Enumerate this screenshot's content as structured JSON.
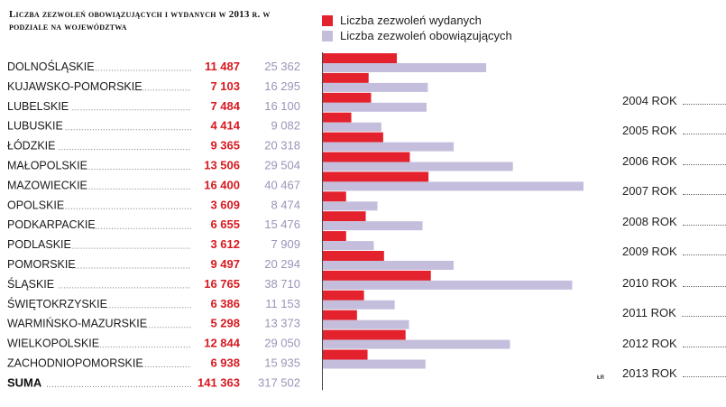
{
  "title": "Liczba zezwoleń obowiązujących i wydanych w 2013 r. w podziale na województwa",
  "legend": {
    "issued_label": "Liczba zezwoleń wydanych",
    "valid_label": "Liczba zezwoleń obowiązujących"
  },
  "colors": {
    "issued": "#e3222d",
    "valid": "#c4bedc",
    "issued_text": "#d71920"
  },
  "chart_data": {
    "type": "bar",
    "orientation": "horizontal",
    "title": "Liczba zezwoleń obowiązujących i wydanych w 2013 r. w podziale na województwa",
    "categories": [
      "DOLNOŚLĄSKIE",
      "KUJAWSKO-POMORSKIE",
      "LUBELSKIE",
      "LUBUSKIE",
      "ŁÓDZKIE",
      "MAŁOPOLSKIE",
      "MAZOWIECKIE",
      "OPOLSKIE",
      "PODKARPACKIE",
      "PODLASKIE",
      "POMORSKIE",
      "ŚLĄSKIE",
      "ŚWIĘTOKRZYSKIE",
      "WARMIŃSKO-MAZURSKIE",
      "WIELKOPOLSKIE",
      "ZACHODNIOPOMORSKIE"
    ],
    "series": [
      {
        "name": "Liczba zezwoleń wydanych",
        "values": [
          11487,
          7103,
          7484,
          4414,
          9365,
          13506,
          16400,
          3609,
          6655,
          3612,
          9497,
          16765,
          6386,
          5298,
          12844,
          6938
        ]
      },
      {
        "name": "Liczba zezwoleń obowiązujących",
        "values": [
          25362,
          16295,
          16100,
          9082,
          20318,
          29504,
          40467,
          8474,
          15476,
          7909,
          20294,
          38710,
          11153,
          13373,
          29050,
          15935
        ]
      }
    ],
    "value_labels": {
      "issued": [
        "11 487",
        "7 103",
        "7 484",
        "4 414",
        "9 365",
        "13 506",
        "16 400",
        "3 609",
        "6 655",
        "3 612",
        "9 497",
        "16 765",
        "6 386",
        "5 298",
        "12 844",
        "6 938"
      ],
      "valid": [
        "25 362",
        "16 295",
        "16 100",
        "9 082",
        "20 318",
        "29 504",
        "40 467",
        "8 474",
        "15 476",
        "7 909",
        "20 294",
        "38 710",
        "11 153",
        "13 373",
        "29 050",
        "15 935"
      ]
    },
    "total": {
      "label": "SUMA",
      "issued": "141 363",
      "valid": "317 502"
    },
    "xlim": [
      0,
      40467
    ],
    "grid": false,
    "legend_position": "top"
  },
  "years": [
    "2004 ROK",
    "2005 ROK",
    "2006 ROK",
    "2007 ROK",
    "2008 ROK",
    "2009 ROK",
    "2010 ROK",
    "2011 ROK",
    "2012 ROK",
    "2013 ROK"
  ],
  "credit": "ŁR"
}
